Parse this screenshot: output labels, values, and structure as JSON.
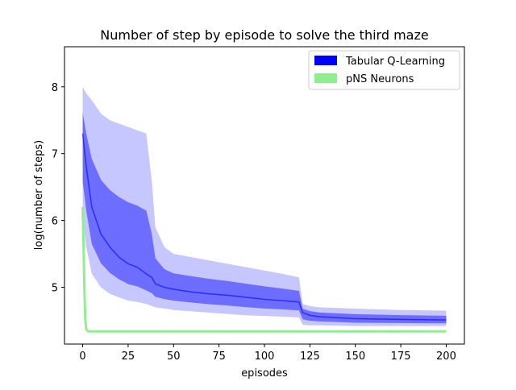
{
  "chart_data": {
    "type": "line",
    "title": "Number of step by episode to solve the third maze",
    "xlabel": "episodes",
    "ylabel": "log(number of steps)",
    "xlim": [
      -10,
      210
    ],
    "ylim": [
      4.15,
      8.6
    ],
    "xticks": [
      0,
      25,
      50,
      75,
      100,
      125,
      150,
      175,
      200
    ],
    "yticks": [
      5,
      6,
      7,
      8
    ],
    "legend_position": "top-right",
    "series": [
      {
        "name": "Tabular Q-Learning",
        "color": "#0000ff",
        "style": "band",
        "x": [
          0,
          2,
          5,
          10,
          15,
          20,
          25,
          30,
          35,
          38,
          40,
          45,
          50,
          60,
          70,
          80,
          90,
          100,
          110,
          119,
          121,
          125,
          130,
          150,
          175,
          200
        ],
        "median": [
          7.3,
          6.8,
          6.2,
          5.8,
          5.6,
          5.45,
          5.35,
          5.3,
          5.2,
          5.15,
          5.05,
          5.0,
          4.97,
          4.93,
          4.9,
          4.88,
          4.85,
          4.82,
          4.8,
          4.78,
          4.62,
          4.58,
          4.56,
          4.53,
          4.52,
          4.51
        ],
        "lower": [
          6.0,
          5.6,
          5.2,
          5.0,
          4.9,
          4.85,
          4.8,
          4.78,
          4.75,
          4.72,
          4.7,
          4.68,
          4.66,
          4.64,
          4.62,
          4.6,
          4.58,
          4.57,
          4.56,
          4.55,
          4.44,
          4.43,
          4.43,
          4.42,
          4.42,
          4.42
        ],
        "upper": [
          8.0,
          7.9,
          7.8,
          7.6,
          7.5,
          7.45,
          7.4,
          7.35,
          7.3,
          6.6,
          5.9,
          5.6,
          5.5,
          5.45,
          5.4,
          5.35,
          5.3,
          5.25,
          5.2,
          5.15,
          4.75,
          4.72,
          4.7,
          4.68,
          4.66,
          4.65
        ]
      },
      {
        "name": "pNS Neurons",
        "color": "#90ee90",
        "style": "line",
        "x": [
          0,
          0.5,
          1,
          1.5,
          2,
          3,
          5,
          10,
          50,
          100,
          150,
          200
        ],
        "values": [
          6.2,
          5.6,
          4.9,
          4.5,
          4.37,
          4.34,
          4.34,
          4.34,
          4.34,
          4.34,
          4.34,
          4.34
        ]
      }
    ]
  }
}
